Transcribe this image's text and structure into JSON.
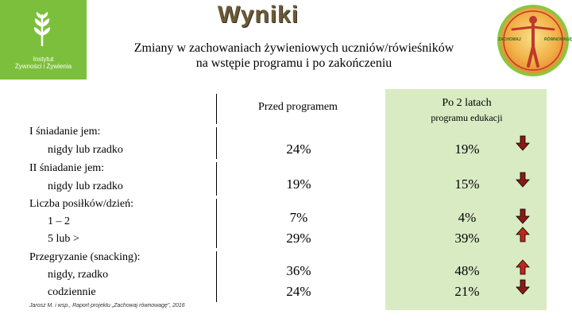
{
  "header": {
    "title": "Wyniki",
    "subtitle_line1": "Zmiany w zachowaniach żywieniowych uczniów/rówieśników",
    "subtitle_line2": "na wstępie programu i po  zakończeniu"
  },
  "logo_left": {
    "line1": "Instytut",
    "line2": "Żywności i Żywienia",
    "icon": "wheat-plant-icon",
    "color": "#7cbf3c"
  },
  "logo_right": {
    "text_left": "ZACHOWAJ",
    "text_right": "RÓWNOWAGĘ"
  },
  "table": {
    "col1_header": "Przed programem",
    "col2_header_line1": "Po 2 latach",
    "col2_header_line2": "programu edukacji",
    "rows": [
      {
        "label": "I śniadanie jem:",
        "sublabel": "nigdy lub rzadko",
        "before": "24%",
        "after": "19%",
        "trend": "down"
      },
      {
        "label": "II śniadanie jem:",
        "sublabel": "nigdy lub rzadko",
        "before": "19%",
        "after": "15%",
        "trend": "down"
      },
      {
        "label": "Liczba posiłków/dzień:",
        "sublabel": "1 – 2",
        "before": "7%",
        "after": "4%",
        "trend": "down"
      },
      {
        "label": "",
        "sublabel": "5 lub >",
        "before": "29%",
        "after": "39%",
        "trend": "up"
      },
      {
        "label": "Przegryzanie (snacking):",
        "sublabel": "nigdy, rzadko",
        "before": "36%",
        "after": "48%",
        "trend": "up"
      },
      {
        "label": "",
        "sublabel": "codziennie",
        "before": "24%",
        "after": "21%",
        "trend": "down"
      }
    ],
    "panel_color": "#d9ebc3",
    "arrow_up_color": "#c0271d",
    "arrow_down_color": "#8b1a14"
  },
  "footnote": "Jarosz M. i wsp., Raport projektu „Zachowaj równowagę”, 2016"
}
